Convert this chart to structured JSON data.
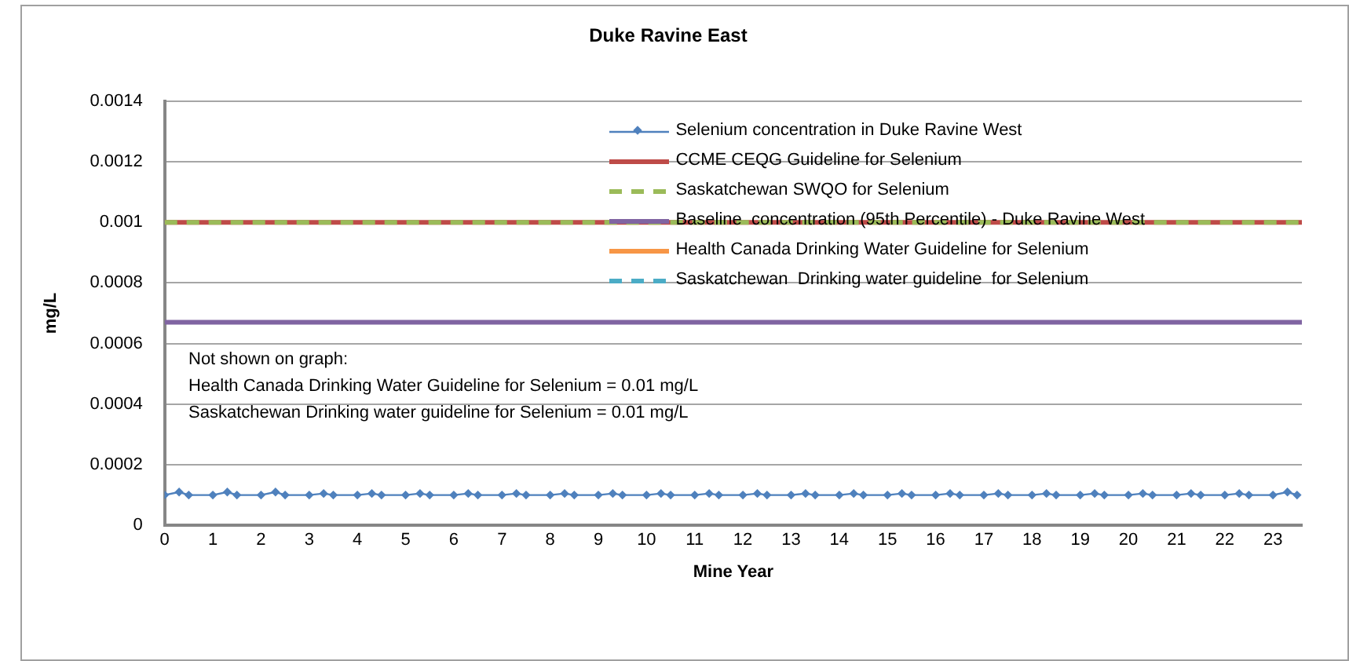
{
  "chart_data": {
    "type": "line",
    "title": "Duke Ravine East",
    "xlabel": "Mine Year",
    "ylabel": "mg/L",
    "xlim": [
      0,
      23.6
    ],
    "xticks": [
      0,
      1,
      2,
      3,
      4,
      5,
      6,
      7,
      8,
      9,
      10,
      11,
      12,
      13,
      14,
      15,
      16,
      17,
      18,
      19,
      20,
      21,
      22,
      23
    ],
    "ylim": [
      0,
      0.0014
    ],
    "yticks": [
      0,
      0.0002,
      0.0004,
      0.0006,
      0.0008,
      0.001,
      0.0012,
      0.0014
    ],
    "grid": "y",
    "legend": "top right",
    "series": [
      {
        "name": "Selenium concentration in Duke Ravine West",
        "color": "#4f81bd",
        "marker": "diamond",
        "line_style": "solid",
        "x": [
          0,
          0.3,
          0.5,
          1,
          1.3,
          1.5,
          2,
          2.3,
          2.5,
          3,
          3.3,
          3.5,
          4,
          4.3,
          4.5,
          5,
          5.3,
          5.5,
          6,
          6.3,
          6.5,
          7,
          7.3,
          7.5,
          8,
          8.3,
          8.5,
          9,
          9.3,
          9.5,
          10,
          10.3,
          10.5,
          11,
          11.3,
          11.5,
          12,
          12.3,
          12.5,
          13,
          13.3,
          13.5,
          14,
          14.3,
          14.5,
          15,
          15.3,
          15.5,
          16,
          16.3,
          16.5,
          17,
          17.3,
          17.5,
          18,
          18.3,
          18.5,
          19,
          19.3,
          19.5,
          20,
          20.3,
          20.5,
          21,
          21.3,
          21.5,
          22,
          22.3,
          22.5,
          23,
          23.3,
          23.5
        ],
        "values": [
          0.0001,
          0.00011,
          0.0001,
          0.0001,
          0.00011,
          0.0001,
          0.0001,
          0.00011,
          0.0001,
          0.0001,
          0.000105,
          0.0001,
          0.0001,
          0.000105,
          0.0001,
          0.0001,
          0.000105,
          0.0001,
          0.0001,
          0.000105,
          0.0001,
          0.0001,
          0.000105,
          0.0001,
          0.0001,
          0.000105,
          0.0001,
          0.0001,
          0.000105,
          0.0001,
          0.0001,
          0.000105,
          0.0001,
          0.0001,
          0.000105,
          0.0001,
          0.0001,
          0.000105,
          0.0001,
          0.0001,
          0.000105,
          0.0001,
          0.0001,
          0.000105,
          0.0001,
          0.0001,
          0.000105,
          0.0001,
          0.0001,
          0.000105,
          0.0001,
          0.0001,
          0.000105,
          0.0001,
          0.0001,
          0.000105,
          0.0001,
          0.0001,
          0.000105,
          0.0001,
          0.0001,
          0.000105,
          0.0001,
          0.0001,
          0.000105,
          0.0001,
          0.0001,
          0.000105,
          0.0001,
          0.0001,
          0.00011,
          0.0001
        ]
      },
      {
        "name": "CCME CEQG Guideline for Selenium",
        "color": "#be4b48",
        "marker": "none",
        "line_style": "solid",
        "x": [
          0,
          23.6
        ],
        "values": [
          0.001,
          0.001
        ]
      },
      {
        "name": "Saskatchewan SWQO for Selenium",
        "color": "#9bbb59",
        "marker": "none",
        "line_style": "dashed",
        "x": [
          0,
          23.6
        ],
        "values": [
          0.001,
          0.001
        ]
      },
      {
        "name": "Baseline  concentration (95th Percentile) - Duke Ravine West",
        "color": "#8064a2",
        "marker": "none",
        "line_style": "solid",
        "x": [
          0,
          23.6
        ],
        "values": [
          0.00067,
          0.00067
        ]
      },
      {
        "name": "Health Canada Drinking Water Guideline for Selenium",
        "color": "#f79646",
        "marker": "none",
        "line_style": "solid"
      },
      {
        "name": "Saskatchewan  Drinking water guideline  for Selenium",
        "color": "#4bacc6",
        "marker": "none",
        "line_style": "dashed"
      }
    ],
    "annotations": [
      "Not shown on graph:",
      "Health Canada Drinking Water Guideline for Selenium = 0.01 mg/L",
      "Saskatchewan Drinking water guideline for Selenium = 0.01 mg/L"
    ]
  }
}
